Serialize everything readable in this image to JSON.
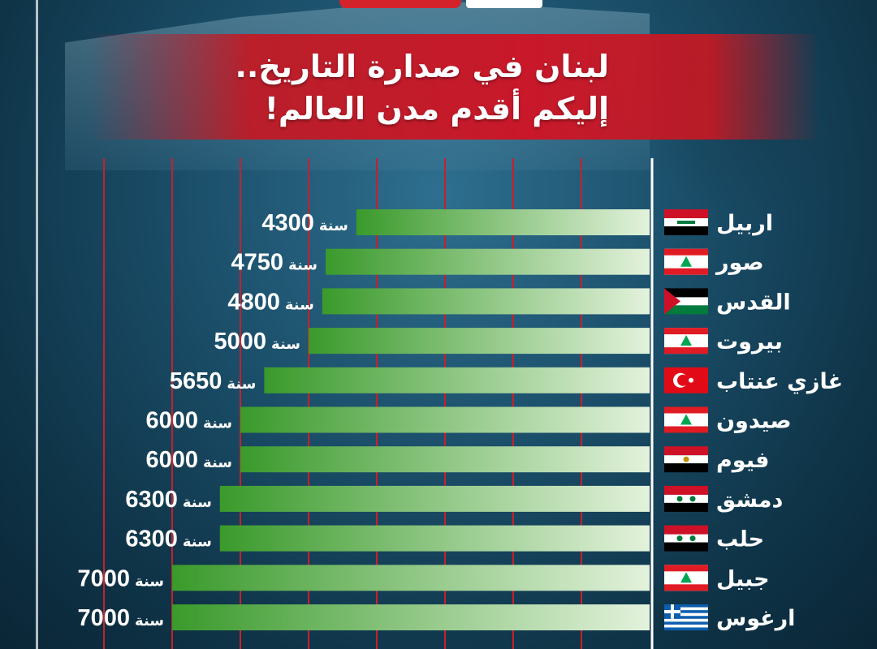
{
  "header": {
    "title_line_1": "لبنان في صدارة التاريخ..",
    "title_line_2": "إليكم أقدم مدن العالم!"
  },
  "colors": {
    "bar_dark": "#3a9a2b",
    "bar_light": "#e3f2dc",
    "gridline": "#c8202a",
    "title_band": "#c8182a",
    "background": "#1b4f6a"
  },
  "chart_data": {
    "type": "bar",
    "orientation": "horizontal",
    "title": "لبنان في صدارة التاريخ.. إليكم أقدم مدن العالم!",
    "unit": "سنة",
    "xlim": [
      0,
      8000
    ],
    "grid": true,
    "categories": [
      "اربيل",
      "صور",
      "القدس",
      "بيروت",
      "غازي عنتاب",
      "صيدون",
      "فيوم",
      "دمشق",
      "حلب",
      "جبيل",
      "ارغوس"
    ],
    "values": [
      4300,
      4750,
      4800,
      5000,
      5650,
      6000,
      6000,
      6300,
      6300,
      7000,
      7000
    ],
    "value_labels": [
      "4300",
      "4750",
      "4800",
      "5000",
      "5650",
      "6000",
      "6000",
      "6300",
      "6300",
      "7000",
      "7000"
    ],
    "flags": [
      "iraq-flag",
      "lebanon-flag",
      "palestine-flag",
      "lebanon-flag",
      "turkey-flag",
      "lebanon-flag",
      "egypt-flag",
      "syria-flag",
      "syria-flag",
      "lebanon-flag",
      "greece-flag"
    ]
  }
}
